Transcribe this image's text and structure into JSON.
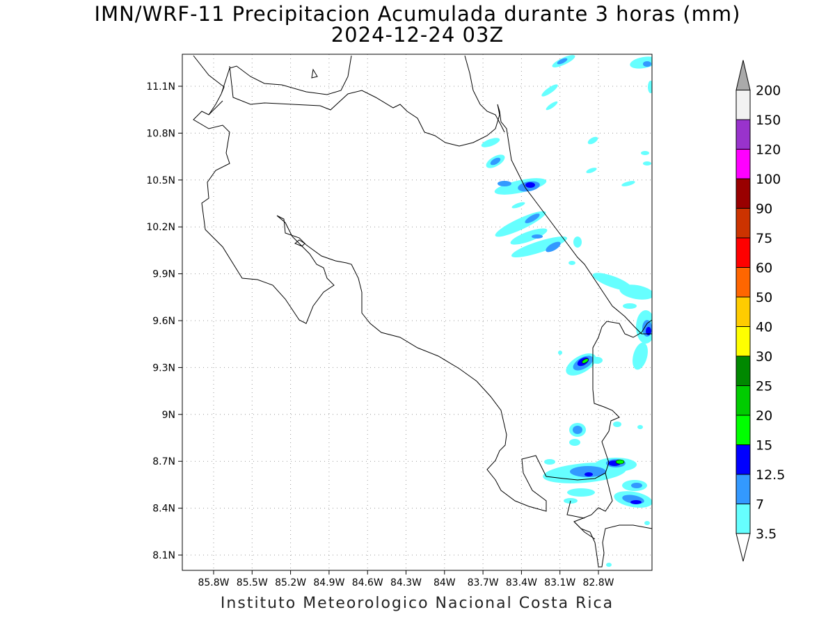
{
  "title": "IMN/WRF-11 Precipitacion Acumulada durante 3 horas (mm)",
  "subtitle": "2024-12-24 03Z",
  "footer": "Instituto Meteorologico Nacional Costa Rica",
  "lat_ticks": [
    "11.1N",
    "10.8N",
    "10.5N",
    "10.2N",
    "9.9N",
    "9.6N",
    "9.3N",
    "9N",
    "8.7N",
    "8.4N",
    "8.1N"
  ],
  "lon_ticks": [
    "85.8W",
    "85.5W",
    "85.2W",
    "84.9W",
    "84.6W",
    "84.3W",
    "84W",
    "83.7W",
    "83.4W",
    "83.1W",
    "82.8W"
  ],
  "colorbar": {
    "levels": [
      "3.5",
      "7",
      "12.5",
      "15",
      "20",
      "25",
      "30",
      "40",
      "50",
      "60",
      "75",
      "90",
      "100",
      "120",
      "150",
      "200"
    ],
    "colors": [
      "#66ffff",
      "#3399ff",
      "#0000ff",
      "#00ff00",
      "#00cc00",
      "#008800",
      "#ffff00",
      "#ffcc00",
      "#ff6600",
      "#ff0000",
      "#cc3300",
      "#990000",
      "#ff00ff",
      "#9933cc",
      "#f2f2f2"
    ],
    "arrow_top": "#aaaaaa",
    "arrow_bottom": "#ffffff"
  }
}
